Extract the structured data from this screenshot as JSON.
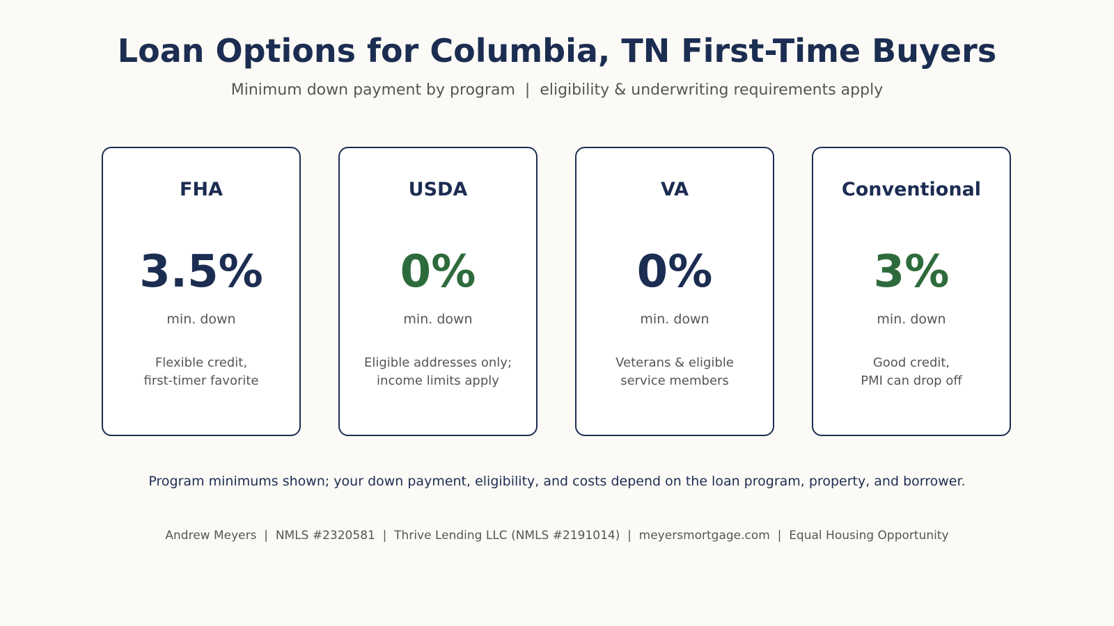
{
  "header": {
    "title": "Loan Options for Columbia, TN First-Time Buyers",
    "subtitle": "Minimum down payment by program  |  eligibility & underwriting requirements apply"
  },
  "cards": [
    {
      "name": "FHA",
      "value": "3.5%",
      "value_color": "#1c2d52",
      "unit": "min. down",
      "desc_line1": "Flexible credit,",
      "desc_line2": "first-timer favorite"
    },
    {
      "name": "USDA",
      "value": "0%",
      "value_color": "#2e6b3c",
      "unit": "min. down",
      "desc_line1": "Eligible addresses only;",
      "desc_line2": "income limits apply"
    },
    {
      "name": "VA",
      "value": "0%",
      "value_color": "#1c2d52",
      "unit": "min. down",
      "desc_line1": "Veterans & eligible",
      "desc_line2": "service members"
    },
    {
      "name": "Conventional",
      "value": "3%",
      "value_color": "#2e6b3c",
      "unit": "min. down",
      "desc_line1": "Good credit,",
      "desc_line2": "PMI can drop off"
    }
  ],
  "disclaimer": "Program minimums shown; your down payment, eligibility, and costs depend on the loan program, property, and borrower.",
  "footer": "Andrew Meyers  |  NMLS #2320581  |  Thrive Lending LLC (NMLS #2191014)  |  meyersmortgage.com  |  Equal Housing Opportunity",
  "colors": {
    "background": "#fcfaf6",
    "navy": "#1c2d52",
    "green": "#2e6b3c",
    "gray_text": "#555555"
  }
}
